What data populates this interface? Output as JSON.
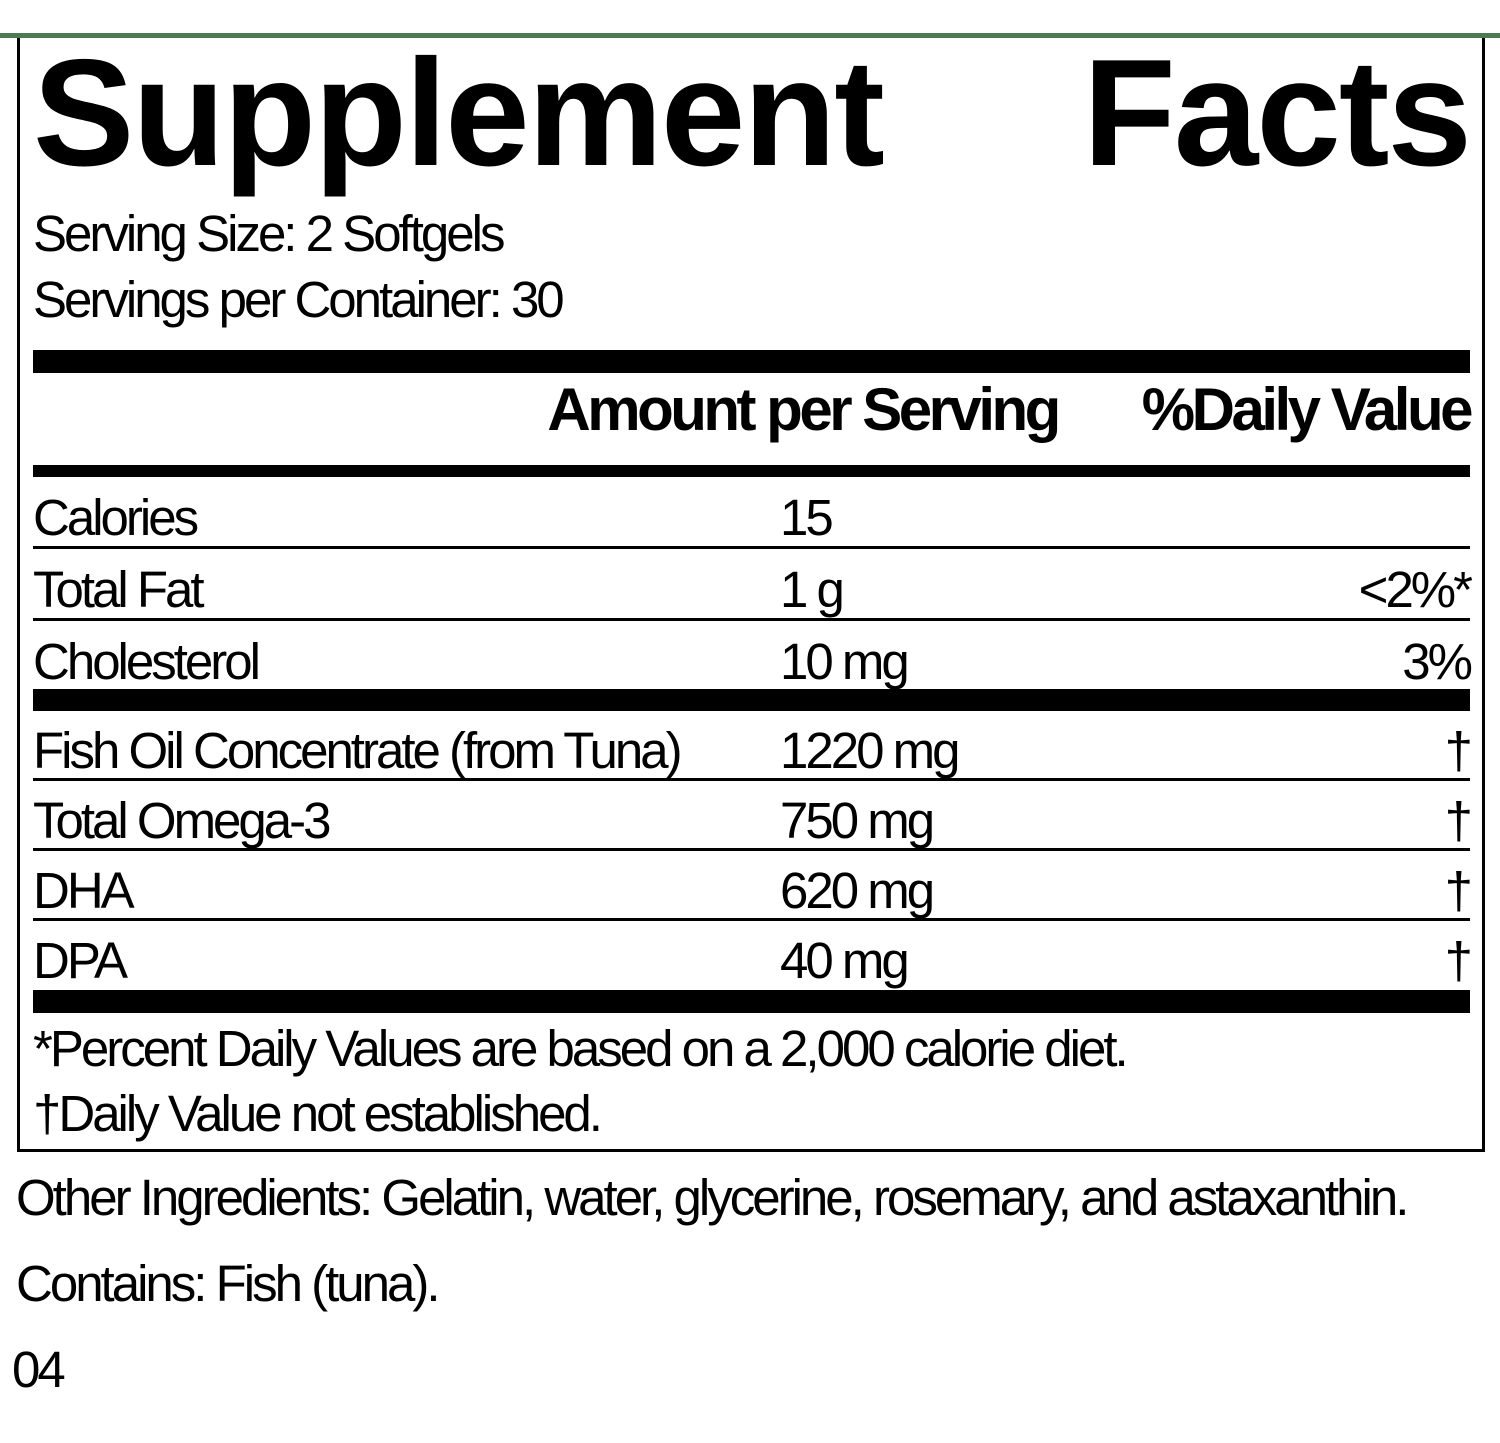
{
  "accent_color": "#4d7a52",
  "label": {
    "title_left": "Supplement",
    "title_right": "Facts",
    "serving_size": "Serving Size: 2 Softgels",
    "servings_per_container": "Servings per Container: 30",
    "col_amount_header": "Amount per Serving",
    "col_dv_header": "%Daily Value",
    "nutrient_rows": [
      {
        "name": "Calories",
        "amount": "15",
        "dv": ""
      },
      {
        "name": "Total Fat",
        "amount": "1 g",
        "dv": "<2%*"
      },
      {
        "name": "Cholesterol",
        "amount": "10 mg",
        "dv": "3%"
      }
    ],
    "ingredient_rows": [
      {
        "name": "Fish Oil Concentrate (from Tuna)",
        "amount": "1220 mg",
        "dv": "†"
      },
      {
        "name": "Total Omega-3",
        "amount": "750 mg",
        "dv": "†"
      },
      {
        "name": "DHA",
        "amount": "620 mg",
        "dv": "†"
      },
      {
        "name": "DPA",
        "amount": "40 mg",
        "dv": "†"
      }
    ],
    "footnote_percent": "*Percent Daily Values are based on a 2,000 calorie diet.",
    "footnote_dagger": "†Daily Value not established."
  },
  "below": {
    "other_ingredients": "Other Ingredients: Gelatin, water, glycerine, rosemary, and astaxanthin.",
    "contains": "Contains: Fish (tuna).",
    "code": "04"
  }
}
